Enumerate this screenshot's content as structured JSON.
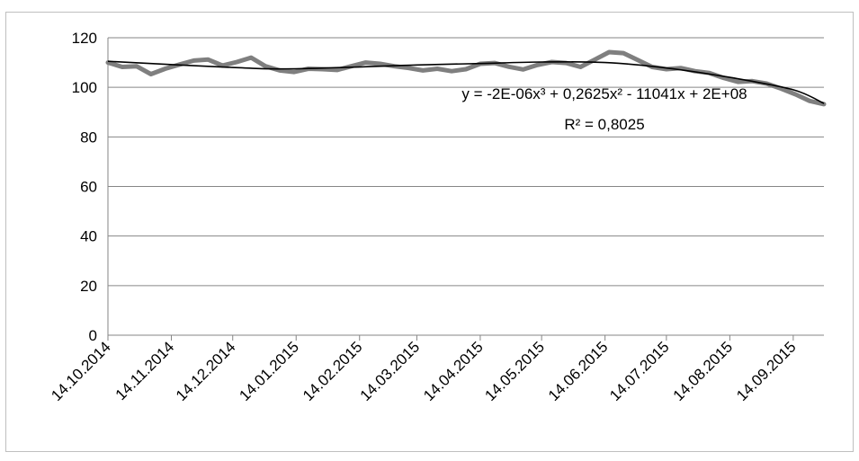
{
  "chart_data": {
    "type": "line",
    "title": "",
    "xlabel": "",
    "ylabel": "",
    "ylim": [
      0,
      120
    ],
    "y_ticks": [
      0,
      20,
      40,
      60,
      80,
      100,
      120
    ],
    "x_range": [
      "14.10.2014",
      "29.09.2015"
    ],
    "x_tick_labels": [
      "14.10.2014",
      "14.11.2014",
      "14.12.2014",
      "14.01.2015",
      "14.02.2015",
      "14.03.2015",
      "14.04.2015",
      "14.05.2015",
      "14.06.2015",
      "14.07.2015",
      "14.08.2015",
      "14.09.2015"
    ],
    "grid": true,
    "legend": false,
    "series": [
      {
        "color": "#7f7f7f",
        "points": [
          {
            "x": "14.10.2014",
            "y": 110
          },
          {
            "x": "21.10.2014",
            "y": 108.2
          },
          {
            "x": "28.10.2014",
            "y": 108.5
          },
          {
            "x": "04.11.2014",
            "y": 105.3
          },
          {
            "x": "11.11.2014",
            "y": 107.5
          },
          {
            "x": "18.11.2014",
            "y": 109.2
          },
          {
            "x": "25.11.2014",
            "y": 110.8
          },
          {
            "x": "02.12.2014",
            "y": 111.2
          },
          {
            "x": "09.12.2014",
            "y": 108.8
          },
          {
            "x": "16.12.2014",
            "y": 110.2
          },
          {
            "x": "23.12.2014",
            "y": 112
          },
          {
            "x": "30.12.2014",
            "y": 108.5
          },
          {
            "x": "06.01.2015",
            "y": 106.8
          },
          {
            "x": "13.01.2015",
            "y": 106.2
          },
          {
            "x": "20.01.2015",
            "y": 107.5
          },
          {
            "x": "27.01.2015",
            "y": 107.3
          },
          {
            "x": "03.02.2015",
            "y": 107
          },
          {
            "x": "10.02.2015",
            "y": 108.5
          },
          {
            "x": "17.02.2015",
            "y": 110
          },
          {
            "x": "24.02.2015",
            "y": 109.5
          },
          {
            "x": "03.03.2015",
            "y": 108.5
          },
          {
            "x": "10.03.2015",
            "y": 107.8
          },
          {
            "x": "17.03.2015",
            "y": 106.8
          },
          {
            "x": "24.03.2015",
            "y": 107.5
          },
          {
            "x": "31.03.2015",
            "y": 106.5
          },
          {
            "x": "07.04.2015",
            "y": 107.3
          },
          {
            "x": "14.04.2015",
            "y": 109.5
          },
          {
            "x": "21.04.2015",
            "y": 109.8
          },
          {
            "x": "28.04.2015",
            "y": 108.3
          },
          {
            "x": "05.05.2015",
            "y": 107.2
          },
          {
            "x": "12.05.2015",
            "y": 109
          },
          {
            "x": "19.05.2015",
            "y": 110.2
          },
          {
            "x": "26.05.2015",
            "y": 109.8
          },
          {
            "x": "02.06.2015",
            "y": 108.2
          },
          {
            "x": "09.06.2015",
            "y": 111.2
          },
          {
            "x": "16.06.2015",
            "y": 114.2
          },
          {
            "x": "23.06.2015",
            "y": 113.8
          },
          {
            "x": "30.06.2015",
            "y": 111
          },
          {
            "x": "07.07.2015",
            "y": 108.2
          },
          {
            "x": "14.07.2015",
            "y": 107.3
          },
          {
            "x": "21.07.2015",
            "y": 107.8
          },
          {
            "x": "28.07.2015",
            "y": 106.5
          },
          {
            "x": "04.08.2015",
            "y": 105.8
          },
          {
            "x": "11.08.2015",
            "y": 103.8
          },
          {
            "x": "18.08.2015",
            "y": 102.2
          },
          {
            "x": "25.08.2015",
            "y": 102.5
          },
          {
            "x": "01.09.2015",
            "y": 101.5
          },
          {
            "x": "08.09.2015",
            "y": 99.5
          },
          {
            "x": "15.09.2015",
            "y": 97.2
          },
          {
            "x": "22.09.2015",
            "y": 94.5
          },
          {
            "x": "29.09.2015",
            "y": 93.2
          }
        ]
      }
    ],
    "trendline": {
      "type": "polynomial",
      "order": 3,
      "color": "#000000",
      "equation": "y = -2E-06x³ + 0,2625x² - 11041x + 2E+08",
      "r_squared": "R² = 0,8025",
      "points": [
        {
          "x": "14.10.2014",
          "y": 110.5
        },
        {
          "x": "14.12.2014",
          "y": 108
        },
        {
          "x": "14.01.2015",
          "y": 107.5
        },
        {
          "x": "14.03.2015",
          "y": 109
        },
        {
          "x": "14.04.2015",
          "y": 109.6
        },
        {
          "x": "14.05.2015",
          "y": 110.2
        },
        {
          "x": "14.06.2015",
          "y": 110
        },
        {
          "x": "14.07.2015",
          "y": 107.8
        },
        {
          "x": "14.08.2015",
          "y": 104
        },
        {
          "x": "14.09.2015",
          "y": 99
        },
        {
          "x": "29.09.2015",
          "y": 93.5
        }
      ]
    }
  }
}
